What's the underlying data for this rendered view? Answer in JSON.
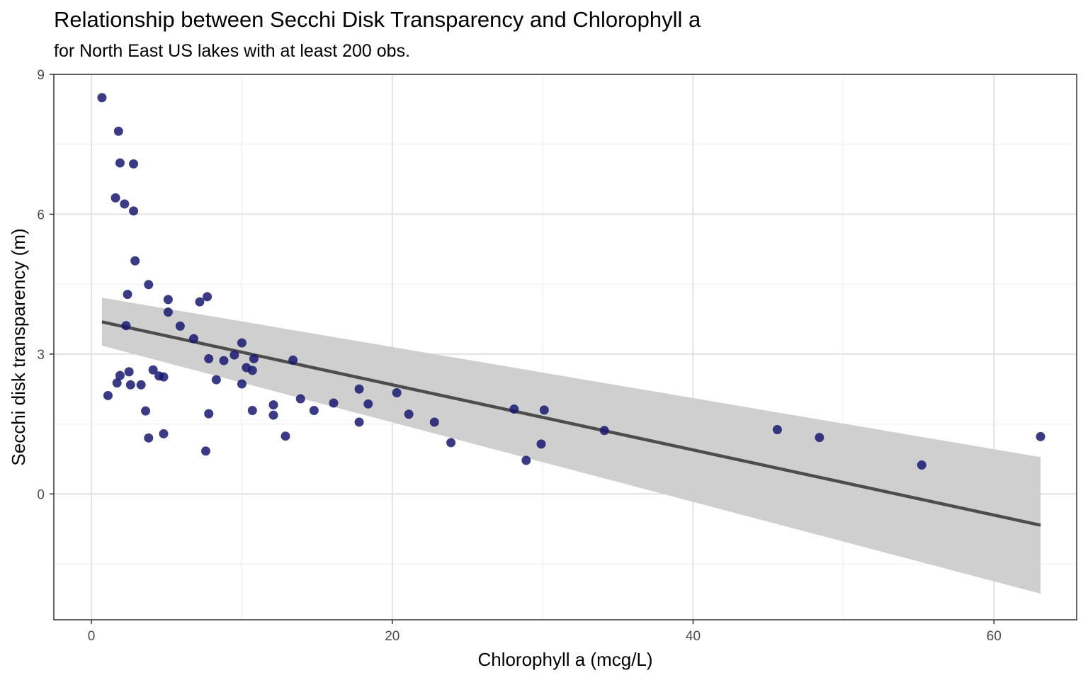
{
  "chart_data": {
    "type": "scatter",
    "title": "Relationship between Secchi Disk Transparency and Chlorophyll a",
    "subtitle": "for North East US lakes with at least 200 obs.",
    "xlabel": "Chlorophyll a (mcg/L)",
    "ylabel": "Secchi disk transparency (m)",
    "xlim": [
      -2.5,
      65.5
    ],
    "ylim": [
      -2.7,
      9.0
    ],
    "x_ticks": [
      0,
      20,
      40,
      60
    ],
    "y_ticks": [
      0,
      3,
      6,
      9
    ],
    "x_tick_labels": [
      "0",
      "20",
      "40",
      "60"
    ],
    "y_tick_labels": [
      "0",
      "3",
      "6",
      "9"
    ],
    "grid": true,
    "point_color": "#191970",
    "series": [
      {
        "type": "scatter",
        "points": [
          {
            "x": 0.7,
            "y": 8.5
          },
          {
            "x": 1.8,
            "y": 7.78
          },
          {
            "x": 1.9,
            "y": 7.1
          },
          {
            "x": 2.8,
            "y": 7.08
          },
          {
            "x": 1.6,
            "y": 6.35
          },
          {
            "x": 2.2,
            "y": 6.22
          },
          {
            "x": 2.8,
            "y": 6.07
          },
          {
            "x": 2.9,
            "y": 5.0
          },
          {
            "x": 3.8,
            "y": 4.49
          },
          {
            "x": 2.4,
            "y": 4.28
          },
          {
            "x": 5.1,
            "y": 4.17
          },
          {
            "x": 7.2,
            "y": 4.12
          },
          {
            "x": 7.7,
            "y": 4.23
          },
          {
            "x": 5.1,
            "y": 3.9
          },
          {
            "x": 2.3,
            "y": 3.61
          },
          {
            "x": 5.9,
            "y": 3.6
          },
          {
            "x": 6.8,
            "y": 3.33
          },
          {
            "x": 10.0,
            "y": 3.24
          },
          {
            "x": 9.5,
            "y": 2.98
          },
          {
            "x": 7.8,
            "y": 2.9
          },
          {
            "x": 8.8,
            "y": 2.86
          },
          {
            "x": 10.8,
            "y": 2.9
          },
          {
            "x": 13.4,
            "y": 2.87
          },
          {
            "x": 10.3,
            "y": 2.71
          },
          {
            "x": 10.7,
            "y": 2.65
          },
          {
            "x": 4.1,
            "y": 2.66
          },
          {
            "x": 2.5,
            "y": 2.62
          },
          {
            "x": 1.9,
            "y": 2.54
          },
          {
            "x": 4.5,
            "y": 2.53
          },
          {
            "x": 4.8,
            "y": 2.51
          },
          {
            "x": 8.3,
            "y": 2.45
          },
          {
            "x": 1.7,
            "y": 2.38
          },
          {
            "x": 2.6,
            "y": 2.34
          },
          {
            "x": 3.3,
            "y": 2.34
          },
          {
            "x": 10.0,
            "y": 2.36
          },
          {
            "x": 17.8,
            "y": 2.25
          },
          {
            "x": 20.3,
            "y": 2.17
          },
          {
            "x": 1.1,
            "y": 2.11
          },
          {
            "x": 13.9,
            "y": 2.04
          },
          {
            "x": 16.1,
            "y": 1.95
          },
          {
            "x": 18.4,
            "y": 1.93
          },
          {
            "x": 12.1,
            "y": 1.91
          },
          {
            "x": 3.6,
            "y": 1.78
          },
          {
            "x": 10.7,
            "y": 1.79
          },
          {
            "x": 14.8,
            "y": 1.79
          },
          {
            "x": 7.8,
            "y": 1.72
          },
          {
            "x": 12.1,
            "y": 1.69
          },
          {
            "x": 21.1,
            "y": 1.71
          },
          {
            "x": 28.1,
            "y": 1.82
          },
          {
            "x": 30.1,
            "y": 1.8
          },
          {
            "x": 17.8,
            "y": 1.54
          },
          {
            "x": 22.8,
            "y": 1.54
          },
          {
            "x": 34.1,
            "y": 1.36
          },
          {
            "x": 45.6,
            "y": 1.38
          },
          {
            "x": 48.4,
            "y": 1.21
          },
          {
            "x": 63.1,
            "y": 1.23
          },
          {
            "x": 4.8,
            "y": 1.29
          },
          {
            "x": 3.8,
            "y": 1.2
          },
          {
            "x": 12.9,
            "y": 1.24
          },
          {
            "x": 23.9,
            "y": 1.1
          },
          {
            "x": 29.9,
            "y": 1.07
          },
          {
            "x": 7.6,
            "y": 0.92
          },
          {
            "x": 28.9,
            "y": 0.72
          },
          {
            "x": 55.2,
            "y": 0.62
          }
        ]
      },
      {
        "type": "line",
        "fit": "linear",
        "color": "#4d4d4d",
        "ribbon_color": "#cccccc",
        "points": [
          {
            "x": 0.7,
            "y": 3.69,
            "ymin": 3.18,
            "ymax": 4.21
          },
          {
            "x": 63.1,
            "y": -0.67,
            "ymin": -2.14,
            "ymax": 0.79
          }
        ]
      }
    ]
  }
}
